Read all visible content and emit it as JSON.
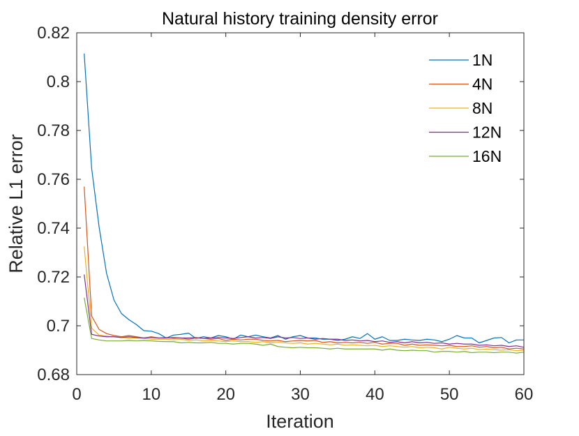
{
  "chart_data": {
    "type": "line",
    "title": "Natural history training density error",
    "xlabel": "Iteration",
    "ylabel": "Relative L1 error",
    "xlim": [
      0,
      60
    ],
    "ylim": [
      0.68,
      0.82
    ],
    "xticks": [
      0,
      10,
      20,
      30,
      40,
      50,
      60
    ],
    "yticks": [
      0.68,
      0.7,
      0.72,
      0.74,
      0.76,
      0.78,
      0.8,
      0.82
    ],
    "xtick_labels": [
      "0",
      "10",
      "20",
      "30",
      "40",
      "50",
      "60"
    ],
    "ytick_labels": [
      "0.68",
      "0.7",
      "0.72",
      "0.74",
      "0.76",
      "0.78",
      "0.8",
      "0.82"
    ],
    "grid": false,
    "legend_position": "top-right",
    "x": [
      1,
      2,
      3,
      4,
      5,
      6,
      7,
      8,
      9,
      10,
      11,
      12,
      13,
      14,
      15,
      16,
      17,
      18,
      19,
      20,
      21,
      22,
      23,
      24,
      25,
      26,
      27,
      28,
      29,
      30,
      31,
      32,
      33,
      34,
      35,
      36,
      37,
      38,
      39,
      40,
      41,
      42,
      43,
      44,
      45,
      46,
      47,
      48,
      49,
      50,
      51,
      52,
      53,
      54,
      55,
      56,
      57,
      58,
      59,
      60
    ],
    "series": [
      {
        "name": "1N",
        "color": "#0072BD",
        "values": [
          0.8115,
          0.7645,
          0.7405,
          0.7215,
          0.7105,
          0.705,
          0.7025,
          0.7005,
          0.698,
          0.6978,
          0.6968,
          0.695,
          0.6962,
          0.6965,
          0.697,
          0.6948,
          0.6955,
          0.695,
          0.696,
          0.6955,
          0.6945,
          0.6962,
          0.6955,
          0.6962,
          0.6955,
          0.695,
          0.696,
          0.6945,
          0.6955,
          0.696,
          0.695,
          0.695,
          0.6945,
          0.6945,
          0.694,
          0.6945,
          0.6955,
          0.6948,
          0.6968,
          0.6945,
          0.6955,
          0.694,
          0.694,
          0.6945,
          0.6942,
          0.694,
          0.6945,
          0.6942,
          0.6935,
          0.6945,
          0.696,
          0.695,
          0.695,
          0.693,
          0.694,
          0.695,
          0.6952,
          0.693,
          0.6942,
          0.6942
        ]
      },
      {
        "name": "4N",
        "color": "#D95319",
        "values": [
          0.757,
          0.704,
          0.6985,
          0.6968,
          0.696,
          0.6955,
          0.696,
          0.6955,
          0.695,
          0.6955,
          0.695,
          0.6952,
          0.6948,
          0.695,
          0.6945,
          0.695,
          0.6948,
          0.6945,
          0.6948,
          0.694,
          0.6945,
          0.6942,
          0.6945,
          0.6945,
          0.694,
          0.6938,
          0.694,
          0.6935,
          0.6938,
          0.694,
          0.6938,
          0.694,
          0.6932,
          0.6935,
          0.693,
          0.6932,
          0.693,
          0.6932,
          0.6928,
          0.6932,
          0.6925,
          0.6928,
          0.6928,
          0.692,
          0.6925,
          0.692,
          0.6922,
          0.692,
          0.6918,
          0.692,
          0.6915,
          0.6915,
          0.6918,
          0.6912,
          0.6915,
          0.691,
          0.6912,
          0.6905,
          0.6908,
          0.6905
        ]
      },
      {
        "name": "8N",
        "color": "#EDB120",
        "values": [
          0.7325,
          0.699,
          0.6962,
          0.6958,
          0.6955,
          0.6952,
          0.695,
          0.695,
          0.6948,
          0.6945,
          0.6945,
          0.6945,
          0.6942,
          0.6945,
          0.694,
          0.6942,
          0.6938,
          0.694,
          0.6938,
          0.6935,
          0.6938,
          0.6935,
          0.6935,
          0.6932,
          0.6935,
          0.693,
          0.6932,
          0.693,
          0.6928,
          0.693,
          0.6925,
          0.6928,
          0.6925,
          0.6922,
          0.6925,
          0.692,
          0.6922,
          0.692,
          0.6918,
          0.692,
          0.6915,
          0.6918,
          0.6915,
          0.6912,
          0.6915,
          0.691,
          0.6912,
          0.691,
          0.6905,
          0.6912,
          0.6908,
          0.6905,
          0.6908,
          0.6902,
          0.6905,
          0.6902,
          0.69,
          0.6902,
          0.6898,
          0.69
        ]
      },
      {
        "name": "12N",
        "color": "#7E2F8E",
        "values": [
          0.721,
          0.6965,
          0.6958,
          0.6955,
          0.6955,
          0.6952,
          0.6955,
          0.6952,
          0.695,
          0.6952,
          0.695,
          0.695,
          0.6952,
          0.695,
          0.695,
          0.6952,
          0.6948,
          0.695,
          0.6952,
          0.695,
          0.6948,
          0.6952,
          0.6955,
          0.695,
          0.6952,
          0.6948,
          0.6955,
          0.695,
          0.6952,
          0.6948,
          0.695,
          0.6945,
          0.6948,
          0.6945,
          0.6945,
          0.694,
          0.6942,
          0.6938,
          0.694,
          0.6935,
          0.6938,
          0.6932,
          0.6935,
          0.693,
          0.6935,
          0.693,
          0.6932,
          0.6928,
          0.693,
          0.6925,
          0.6928,
          0.6925,
          0.6925,
          0.692,
          0.6922,
          0.6918,
          0.692,
          0.6915,
          0.6918,
          0.6912
        ]
      },
      {
        "name": "16N",
        "color": "#77AC30",
        "values": [
          0.7115,
          0.6948,
          0.6942,
          0.6938,
          0.6938,
          0.6938,
          0.694,
          0.6938,
          0.694,
          0.6938,
          0.6936,
          0.6935,
          0.6935,
          0.693,
          0.6932,
          0.693,
          0.693,
          0.6932,
          0.6928,
          0.6928,
          0.6925,
          0.6928,
          0.6928,
          0.6925,
          0.692,
          0.6925,
          0.6915,
          0.6912,
          0.691,
          0.6912,
          0.691,
          0.691,
          0.6908,
          0.6905,
          0.6908,
          0.6905,
          0.6905,
          0.6905,
          0.6905,
          0.6905,
          0.69,
          0.6905,
          0.69,
          0.6898,
          0.69,
          0.6898,
          0.6898,
          0.6892,
          0.6895,
          0.6895,
          0.6892,
          0.6895,
          0.689,
          0.6892,
          0.6892,
          0.689,
          0.6892,
          0.6892,
          0.6888,
          0.6892
        ]
      }
    ]
  }
}
